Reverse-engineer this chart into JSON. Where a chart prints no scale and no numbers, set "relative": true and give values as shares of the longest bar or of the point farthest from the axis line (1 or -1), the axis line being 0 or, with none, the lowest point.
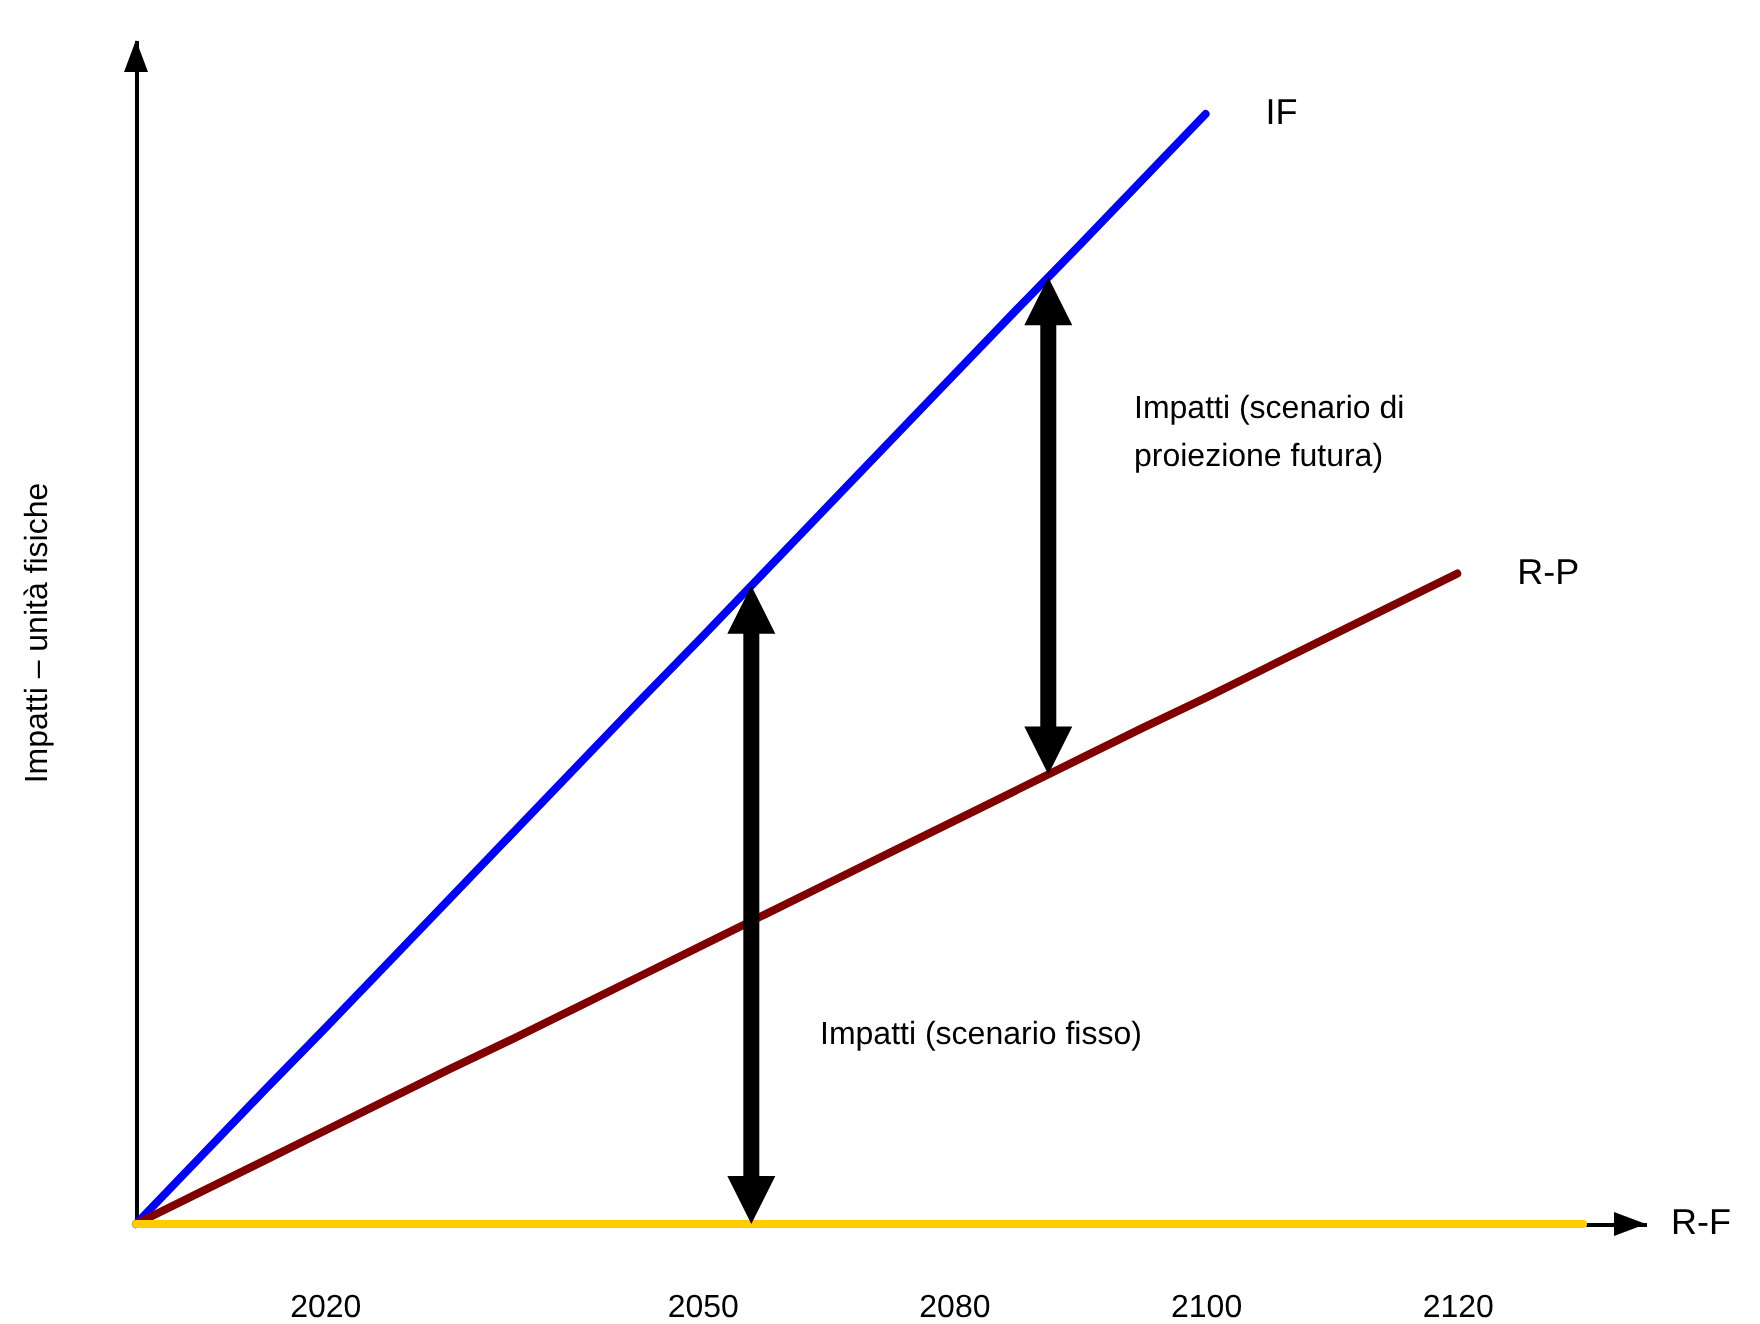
{
  "chart_data": {
    "type": "line",
    "ylabel": "Impatti – unità fisiche",
    "relative": true,
    "categories": [
      null,
      null,
      null,
      "2020",
      null,
      null,
      null,
      null,
      null,
      "2050",
      null,
      null,
      null,
      "2080",
      null,
      null,
      null,
      "2100",
      null,
      null,
      null,
      "2120",
      null,
      null,
      null
    ],
    "series": [
      {
        "name": "IF",
        "color": "#0000ff",
        "values": [
          0,
          0.059,
          0.118,
          0.176,
          0.235,
          0.294,
          0.353,
          0.412,
          0.471,
          0.529,
          0.588,
          0.647,
          0.706,
          0.765,
          0.824,
          0.882,
          0.941,
          1,
          null,
          null,
          null,
          null,
          null,
          null,
          null
        ]
      },
      {
        "name": "R-P",
        "color": "#800000",
        "values": [
          0,
          0.028,
          0.056,
          0.084,
          0.112,
          0.14,
          0.167,
          0.195,
          0.223,
          0.251,
          0.279,
          0.307,
          0.335,
          0.363,
          0.391,
          0.419,
          0.447,
          0.474,
          0.502,
          0.53,
          0.558,
          0.586,
          null,
          null,
          null
        ]
      },
      {
        "name": "R-F",
        "color": "#ffcc00",
        "values": [
          0,
          0,
          0,
          0,
          0,
          0,
          0,
          0,
          0,
          0,
          0,
          0,
          0,
          0,
          0,
          0,
          0,
          0,
          0,
          0,
          0,
          0,
          0,
          0,
          null
        ]
      }
    ],
    "annotations": [
      "Impatti (scenario di proiezione futura)",
      "Impatti (scenario fisso)"
    ]
  }
}
